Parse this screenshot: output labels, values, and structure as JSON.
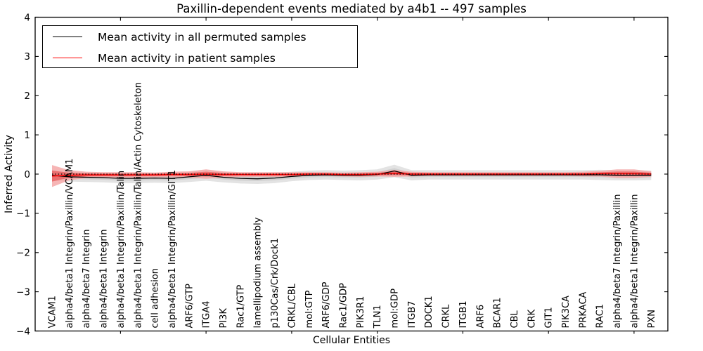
{
  "figure": {
    "title": "Paxillin-dependent events mediated by a4b1 -- 497 samples"
  },
  "legend": {
    "items": [
      {
        "label": "Mean activity in all permuted samples",
        "color": "#000000"
      },
      {
        "label": "Mean activity in patient samples",
        "color": "#ff0000"
      }
    ],
    "position": "upper left"
  },
  "chart_data": {
    "type": "line",
    "title": "Paxillin-dependent events mediated by a4b1 -- 497 samples",
    "xlabel": "Cellular Entities",
    "ylabel": "Inferred Activity",
    "ylim": [
      -4,
      4
    ],
    "yticks": [
      -4,
      -3,
      -2,
      -1,
      0,
      1,
      2,
      3,
      4
    ],
    "grid": false,
    "legend_position": "upper left",
    "categories": [
      "VCAM1",
      "alpha4/beta1 Integrin/Paxillin/VCAM1",
      "alpha4/beta7 Integrin",
      "alpha4/beta1 Integrin",
      "alpha4/beta1 Integrin/Paxillin/Talin",
      "alpha4/beta1 Integrin/Paxillin/Talin/Actin Cytoskeleton",
      "cell adhesion",
      "alpha4/beta1 Integrin/Paxillin/GIT1",
      "ARF6/GTP",
      "ITGA4",
      "PI3K",
      "Rac1/GTP",
      "lamellipodium assembly",
      "p130Cas/Crk/Dock1",
      "CRKL/CBL",
      "mol:GTP",
      "ARF6/GDP",
      "Rac1/GDP",
      "PIK3R1",
      "TLN1",
      "mol:GDP",
      "ITGB7",
      "DOCK1",
      "CRKL",
      "ITGB1",
      "ARF6",
      "BCAR1",
      "CBL",
      "CRK",
      "GIT1",
      "PIK3CA",
      "PRKACA",
      "RAC1",
      "alpha4/beta7 Integrin/Paxillin",
      "alpha4/beta1 Integrin/Paxillin",
      "PXN"
    ],
    "series": [
      {
        "name": "Mean activity in all permuted samples",
        "color": "#000000",
        "band_outer_color": "#e3e3e3",
        "band_inner_color": "#d2d2d2",
        "values": [
          -0.03,
          -0.07,
          -0.08,
          -0.09,
          -0.11,
          -0.11,
          -0.1,
          -0.11,
          -0.07,
          -0.03,
          -0.08,
          -0.11,
          -0.12,
          -0.1,
          -0.06,
          -0.03,
          -0.02,
          -0.03,
          -0.03,
          -0.01,
          0.08,
          -0.03,
          -0.02,
          -0.02,
          -0.02,
          -0.02,
          -0.02,
          -0.02,
          -0.02,
          -0.02,
          -0.02,
          -0.02,
          -0.02,
          -0.03,
          -0.03,
          -0.03
        ],
        "band_half_widths": [
          0.14,
          0.12,
          0.12,
          0.12,
          0.12,
          0.12,
          0.12,
          0.12,
          0.13,
          0.14,
          0.13,
          0.13,
          0.13,
          0.13,
          0.12,
          0.12,
          0.12,
          0.12,
          0.13,
          0.13,
          0.16,
          0.13,
          0.12,
          0.12,
          0.12,
          0.12,
          0.12,
          0.12,
          0.12,
          0.12,
          0.12,
          0.12,
          0.13,
          0.13,
          0.13,
          0.12
        ]
      },
      {
        "name": "Mean activity in patient samples",
        "color": "#ff0000",
        "band_outer_color": "#f5a8a8",
        "band_inner_color": "#ea6f6f",
        "values": [
          -0.05,
          -0.03,
          -0.02,
          -0.02,
          -0.02,
          -0.02,
          -0.02,
          -0.01,
          -0.01,
          0.0,
          -0.01,
          -0.01,
          -0.01,
          -0.01,
          -0.01,
          0.0,
          0.0,
          -0.01,
          -0.01,
          0.0,
          0.02,
          0.0,
          0.0,
          0.0,
          0.0,
          0.0,
          0.0,
          0.0,
          0.0,
          0.0,
          0.0,
          0.0,
          0.01,
          0.01,
          0.01,
          0.0
        ],
        "band_half_widths": [
          0.28,
          0.13,
          0.08,
          0.07,
          0.07,
          0.07,
          0.06,
          0.07,
          0.08,
          0.12,
          0.08,
          0.06,
          0.06,
          0.06,
          0.06,
          0.05,
          0.05,
          0.05,
          0.06,
          0.06,
          0.09,
          0.06,
          0.05,
          0.05,
          0.05,
          0.05,
          0.05,
          0.05,
          0.05,
          0.05,
          0.05,
          0.06,
          0.07,
          0.11,
          0.11,
          0.07
        ]
      }
    ],
    "zero_line": {
      "y": 0,
      "style": "dotted",
      "color": "#000000"
    }
  }
}
